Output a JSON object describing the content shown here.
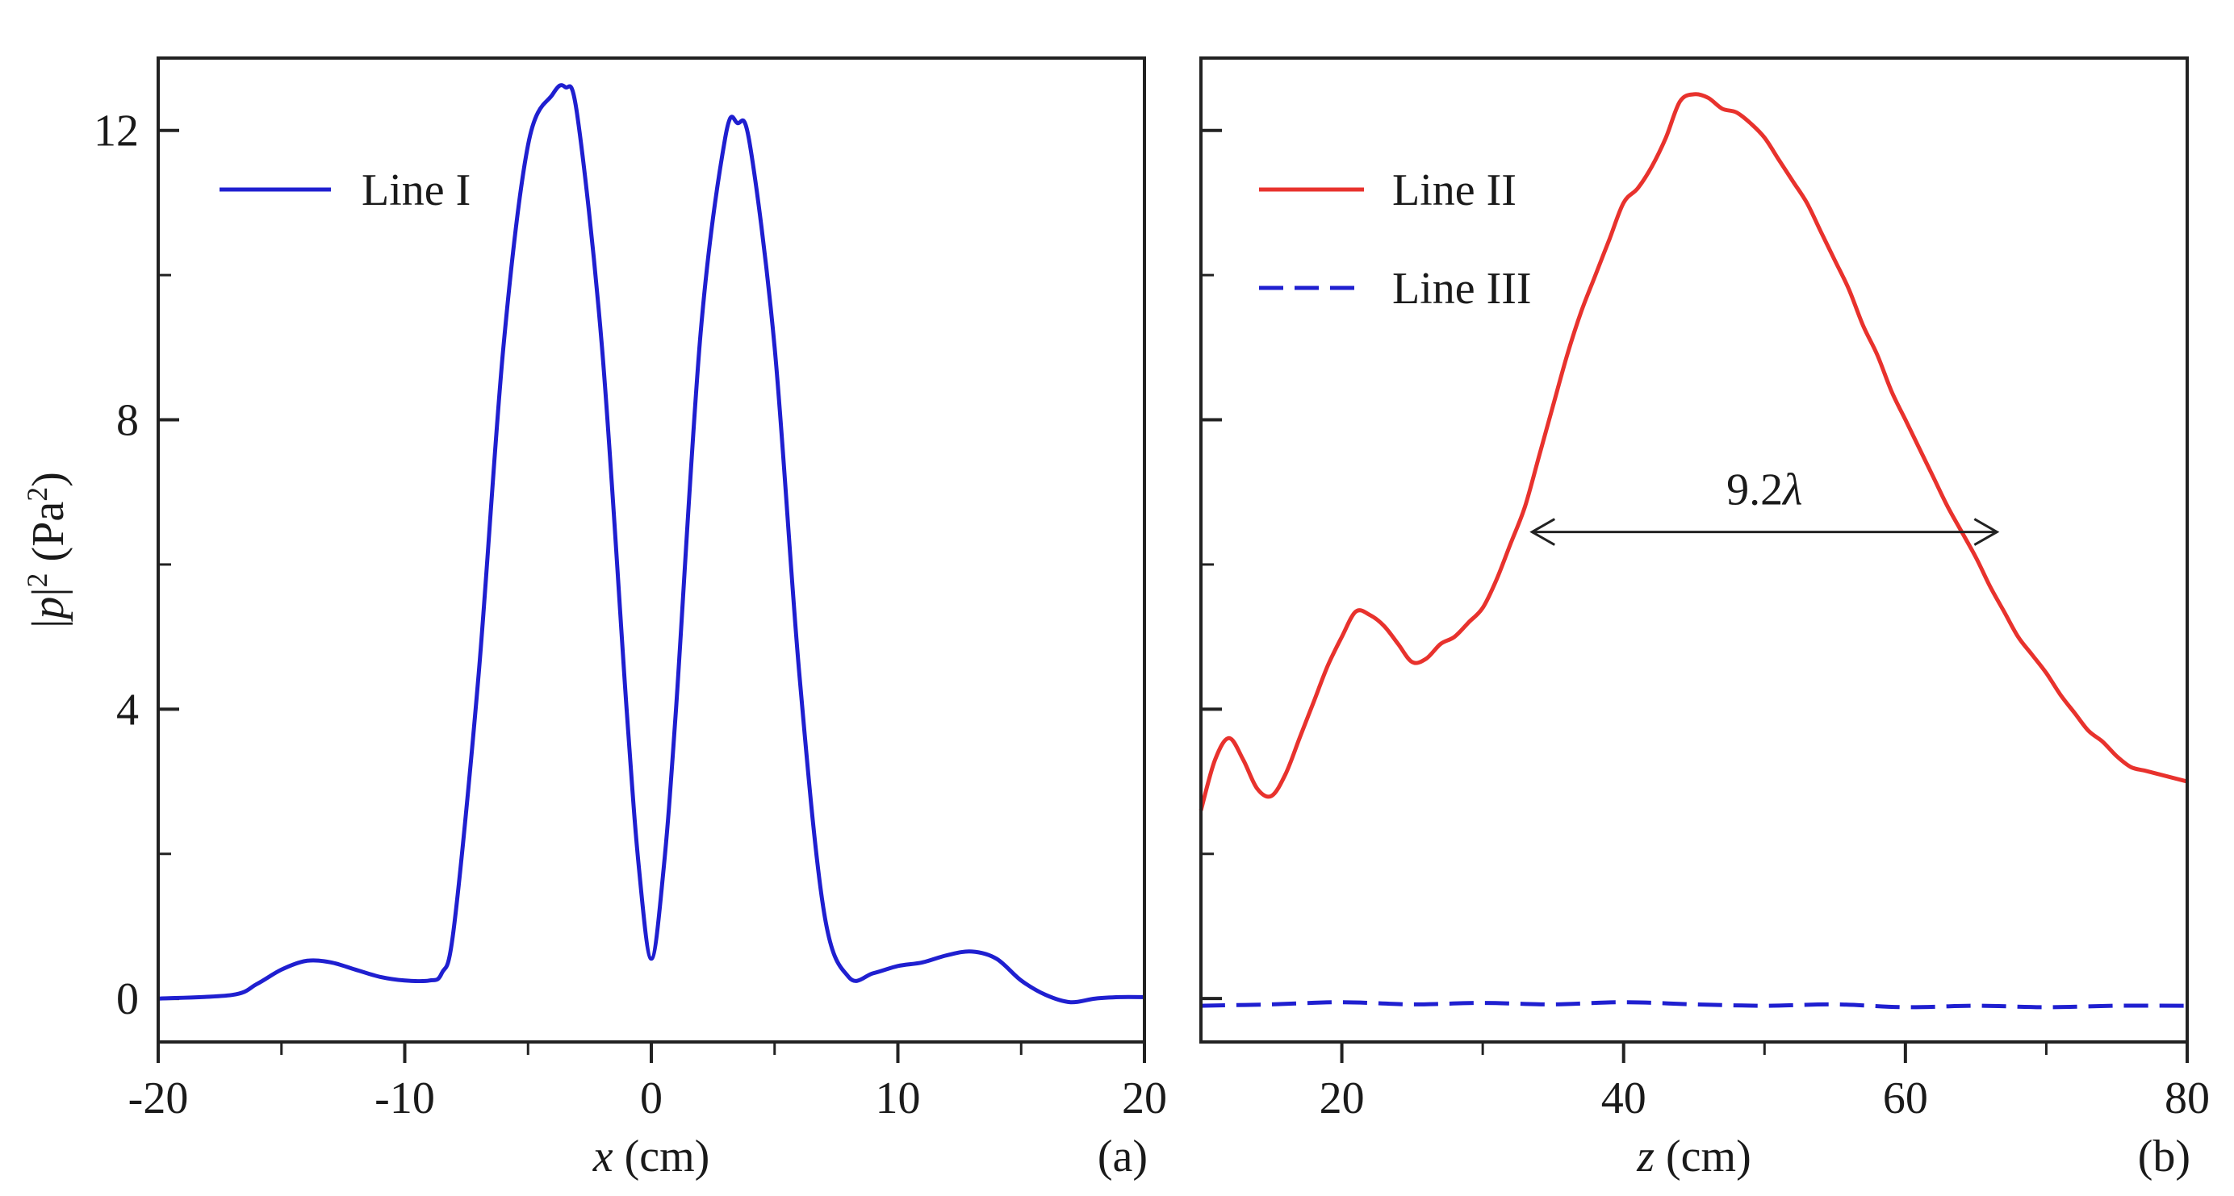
{
  "chart_data": [
    {
      "type": "line",
      "panel_label": "(a)",
      "xlabel_var": "x",
      "xlabel_unit": " (cm)",
      "ylabel_var": "p",
      "ylabel_unit": "(Pa",
      "ylabel_exp": "2",
      "xlim": [
        -20,
        20
      ],
      "ylim": [
        -0.6,
        13
      ],
      "xticks": [
        -20,
        -10,
        0,
        10,
        20
      ],
      "xtick_labels": [
        "-20",
        "-10",
        "0",
        "10",
        "20"
      ],
      "xminor": [
        -15,
        -5,
        5,
        15
      ],
      "yticks": [
        0,
        4,
        8,
        12
      ],
      "ytick_labels": [
        "0",
        "4",
        "8",
        "12"
      ],
      "yminor": [
        2,
        6,
        10
      ],
      "legend_position": "top-left",
      "series": [
        {
          "name": "Line I",
          "color": "#1f1fd0",
          "style": "solid",
          "x": [
            -20,
            -17,
            -16,
            -15,
            -14,
            -13,
            -12,
            -11,
            -10,
            -9,
            -8.5,
            -8,
            -7,
            -6,
            -5,
            -4,
            -3.5,
            -3,
            -2,
            -1,
            -0.5,
            0,
            0.5,
            1,
            2,
            3,
            3.5,
            4,
            5,
            6,
            7,
            8,
            9,
            10,
            11,
            12,
            13,
            14,
            15,
            16,
            17,
            18,
            19,
            20
          ],
          "y": [
            0.0,
            0.05,
            0.2,
            0.4,
            0.52,
            0.5,
            0.4,
            0.3,
            0.25,
            0.25,
            0.35,
            1.0,
            4.5,
            9.0,
            11.8,
            12.5,
            12.6,
            12.2,
            9.0,
            4.0,
            1.8,
            0.55,
            1.8,
            4.0,
            9.2,
            11.9,
            12.1,
            11.8,
            9.0,
            4.5,
            1.2,
            0.3,
            0.35,
            0.45,
            0.5,
            0.6,
            0.65,
            0.55,
            0.25,
            0.05,
            -0.05,
            0.0,
            0.02,
            0.02
          ]
        }
      ]
    },
    {
      "type": "line",
      "panel_label": "(b)",
      "xlabel_var": "z",
      "xlabel_unit": " (cm)",
      "xlim": [
        10,
        80
      ],
      "ylim": [
        -0.6,
        13
      ],
      "xticks": [
        20,
        40,
        60,
        80
      ],
      "xtick_labels": [
        "20",
        "40",
        "60",
        "80"
      ],
      "xminor": [
        30,
        50,
        70
      ],
      "yticks": [
        0,
        4,
        8,
        12
      ],
      "yminor": [
        2,
        6,
        10
      ],
      "legend_position": "top-left",
      "annotation": {
        "text_num": "9.2",
        "text_sym": "λ",
        "x1": 33.5,
        "x2": 66.5,
        "y": 6.45
      },
      "series": [
        {
          "name": "Line II",
          "color": "#e8322d",
          "style": "solid",
          "x": [
            10,
            11,
            12,
            13,
            14,
            15,
            16,
            17,
            18,
            19,
            20,
            21,
            22,
            23,
            24,
            25,
            26,
            27,
            28,
            29,
            30,
            31,
            32,
            33,
            34,
            35,
            36,
            37,
            38,
            39,
            40,
            41,
            42,
            43,
            44,
            45,
            46,
            47,
            48,
            49,
            50,
            51,
            52,
            53,
            54,
            55,
            56,
            57,
            58,
            59,
            60,
            61,
            62,
            63,
            64,
            65,
            66,
            67,
            68,
            69,
            70,
            71,
            72,
            73,
            74,
            75,
            76,
            77,
            78,
            79,
            80
          ],
          "y": [
            2.6,
            3.3,
            3.6,
            3.3,
            2.9,
            2.8,
            3.1,
            3.6,
            4.1,
            4.6,
            5.0,
            5.35,
            5.3,
            5.15,
            4.9,
            4.65,
            4.7,
            4.9,
            5.0,
            5.2,
            5.4,
            5.8,
            6.3,
            6.8,
            7.5,
            8.2,
            8.9,
            9.5,
            10.0,
            10.5,
            11.0,
            11.2,
            11.5,
            11.9,
            12.4,
            12.5,
            12.45,
            12.3,
            12.25,
            12.1,
            11.9,
            11.6,
            11.3,
            11.0,
            10.6,
            10.2,
            9.8,
            9.3,
            8.9,
            8.4,
            8.0,
            7.6,
            7.2,
            6.8,
            6.45,
            6.1,
            5.7,
            5.35,
            5.0,
            4.75,
            4.5,
            4.2,
            3.95,
            3.7,
            3.55,
            3.35,
            3.2,
            3.15,
            3.1,
            3.05,
            3.0
          ]
        },
        {
          "name": "Line III",
          "color": "#1f1fd0",
          "style": "dashed",
          "x": [
            10,
            15,
            20,
            25,
            30,
            35,
            40,
            45,
            50,
            55,
            60,
            65,
            70,
            75,
            80
          ],
          "y": [
            -0.1,
            -0.08,
            -0.05,
            -0.08,
            -0.06,
            -0.08,
            -0.05,
            -0.08,
            -0.1,
            -0.08,
            -0.12,
            -0.1,
            -0.12,
            -0.1,
            -0.1
          ]
        }
      ]
    }
  ]
}
